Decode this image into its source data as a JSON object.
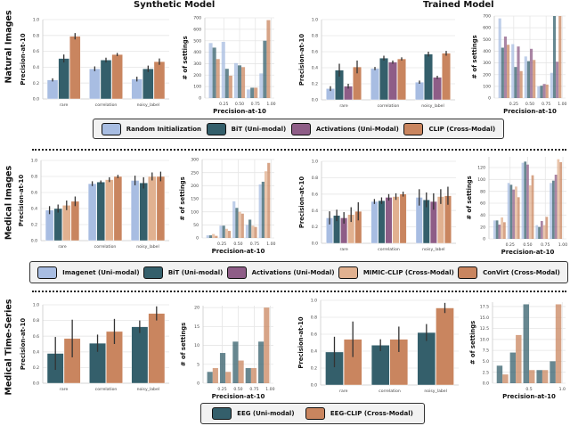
{
  "column_titles": [
    "Synthetic Model",
    "Trained Model"
  ],
  "row_labels": [
    "Natural Images",
    "Medical Images",
    "Medical Time-Series"
  ],
  "colors": {
    "Random Initialization": "#a8bde2",
    "BiT (Uni-modal)": "#345f6b",
    "Activations (Uni-Modal)": "#8e5d87",
    "CLIP (Cross-Modal)": "#c9855f",
    "Imagenet (Uni-modal)": "#a8bde2",
    "MIMIC-CLIP (Cross-Modal)": "#e1b190",
    "ConVirt (Cross-Modal)": "#c9855f",
    "EEG (Uni-modal)": "#345f6b",
    "EEG-CLIP (Cross-Modal)": "#c9855f"
  },
  "legends": [
    [
      "Random Initialization",
      "BiT (Uni-modal)",
      "Activations (Uni-Modal)",
      "CLIP (Cross-Modal)"
    ],
    [
      "Imagenet (Uni-modal)",
      "BiT (Uni-modal)",
      "Activations (Uni-Modal)",
      "MIMIC-CLIP (Cross-Modal)",
      "ConVirt (Cross-Modal)"
    ],
    [
      "EEG (Uni-modal)",
      "EEG-CLIP (Cross-Modal)"
    ]
  ],
  "chart_data": [
    {
      "type": "bar",
      "panel": "natural-synthetic",
      "ylabel": "Precision-at-10",
      "ylim": [
        0,
        1
      ],
      "yticks": [
        0,
        0.2,
        0.4,
        0.6,
        0.8,
        1.0
      ],
      "tick_decimals": 1,
      "grid": "horizontal",
      "categories": [
        "rare",
        "correlation",
        "noisy_label"
      ],
      "series": [
        {
          "name": "Random Initialization",
          "values": [
            0.24,
            0.38,
            0.25
          ],
          "err": [
            0.02,
            0.03,
            0.03
          ]
        },
        {
          "name": "BiT (Uni-modal)",
          "values": [
            0.51,
            0.49,
            0.38
          ],
          "err": [
            0.05,
            0.03,
            0.04
          ]
        },
        {
          "name": "CLIP (Cross-Modal)",
          "values": [
            0.79,
            0.56,
            0.47
          ],
          "err": [
            0.04,
            0.02,
            0.04
          ]
        }
      ]
    },
    {
      "type": "histogram",
      "panel": "natural-synthetic",
      "xlabel": "Precision-at-10",
      "ylabel": "# of settings",
      "ylim": [
        0,
        700
      ],
      "yticks": [
        0,
        100,
        200,
        300,
        400,
        500,
        600,
        700
      ],
      "tick_decimals": 0,
      "xticks": [
        0.25,
        0.5,
        0.75,
        1.0
      ],
      "xtick_decimals": 2,
      "bin_edges": [
        0,
        0.2,
        0.4,
        0.6,
        0.8,
        1.0
      ],
      "grid": "both",
      "series": [
        {
          "name": "Random Initialization",
          "values": [
            480,
            490,
            305,
            75,
            215
          ]
        },
        {
          "name": "BiT (Uni-modal)",
          "values": [
            440,
            255,
            285,
            90,
            500
          ]
        },
        {
          "name": "CLIP (Cross-Modal)",
          "values": [
            340,
            195,
            270,
            90,
            680
          ]
        }
      ]
    },
    {
      "type": "bar",
      "panel": "natural-trained",
      "ylabel": "Precision-at-10",
      "ylim": [
        0,
        1
      ],
      "yticks": [
        0,
        0.2,
        0.4,
        0.6,
        0.8,
        1.0
      ],
      "tick_decimals": 1,
      "grid": "horizontal",
      "categories": [
        "rare",
        "correlation",
        "noisy_label"
      ],
      "series": [
        {
          "name": "Random Initialization",
          "values": [
            0.14,
            0.39,
            0.22
          ],
          "err": [
            0.03,
            0.02,
            0.02
          ]
        },
        {
          "name": "BiT (Uni-modal)",
          "values": [
            0.37,
            0.52,
            0.57
          ],
          "err": [
            0.08,
            0.03,
            0.03
          ]
        },
        {
          "name": "Activations (Uni-Modal)",
          "values": [
            0.17,
            0.47,
            0.28
          ],
          "err": [
            0.03,
            0.02,
            0.02
          ]
        },
        {
          "name": "CLIP (Cross-Modal)",
          "values": [
            0.41,
            0.51,
            0.58
          ],
          "err": [
            0.08,
            0.02,
            0.03
          ]
        }
      ]
    },
    {
      "type": "histogram",
      "panel": "natural-trained",
      "xlabel": "Precision-at-10",
      "ylabel": "# of settings",
      "ylim": [
        0,
        700
      ],
      "yticks": [
        0,
        100,
        200,
        300,
        400,
        500,
        600,
        700
      ],
      "tick_decimals": 0,
      "xticks": [
        0.25,
        0.5,
        0.75,
        1.0
      ],
      "xtick_decimals": 2,
      "bin_edges": [
        0,
        0.2,
        0.4,
        0.6,
        0.8,
        1.0
      ],
      "grid": "both",
      "series": [
        {
          "name": "Random Initialization",
          "values": [
            680,
            460,
            355,
            100,
            215
          ]
        },
        {
          "name": "BiT (Uni-modal)",
          "values": [
            430,
            265,
            315,
            105,
            700
          ]
        },
        {
          "name": "Activations (Uni-Modal)",
          "values": [
            525,
            440,
            420,
            120,
            310
          ]
        },
        {
          "name": "CLIP (Cross-Modal)",
          "values": [
            455,
            230,
            325,
            115,
            700
          ]
        }
      ]
    },
    {
      "type": "bar",
      "panel": "medical-synthetic",
      "ylabel": "Precision-at-10",
      "ylim": [
        0,
        1
      ],
      "yticks": [
        0,
        0.2,
        0.4,
        0.6,
        0.8,
        1.0
      ],
      "tick_decimals": 1,
      "grid": "horizontal",
      "categories": [
        "rare",
        "correlation",
        "noisy_label"
      ],
      "series": [
        {
          "name": "Imagenet (Uni-modal)",
          "values": [
            0.38,
            0.71,
            0.75
          ],
          "err": [
            0.05,
            0.03,
            0.06
          ]
        },
        {
          "name": "BiT (Uni-modal)",
          "values": [
            0.4,
            0.73,
            0.72
          ],
          "err": [
            0.05,
            0.02,
            0.07
          ]
        },
        {
          "name": "MIMIC-CLIP (Cross-Modal)",
          "values": [
            0.44,
            0.76,
            0.8
          ],
          "err": [
            0.06,
            0.03,
            0.05
          ]
        },
        {
          "name": "ConVirt (Cross-Modal)",
          "values": [
            0.49,
            0.8,
            0.8
          ],
          "err": [
            0.06,
            0.02,
            0.06
          ]
        }
      ]
    },
    {
      "type": "histogram",
      "panel": "medical-synthetic",
      "xlabel": "Precision-at-10",
      "ylabel": "# of settings",
      "ylim": [
        0,
        300
      ],
      "yticks": [
        0,
        50,
        100,
        150,
        200,
        250,
        300
      ],
      "tick_decimals": 0,
      "xticks": [
        0.25,
        0.5,
        0.75,
        1.0
      ],
      "xtick_decimals": 2,
      "bin_edges": [
        0,
        0.2,
        0.4,
        0.6,
        0.8,
        1.0
      ],
      "grid": "both",
      "series": [
        {
          "name": "Imagenet (Uni-modal)",
          "values": [
            10,
            47,
            140,
            50,
            205
          ]
        },
        {
          "name": "BiT (Uni-modal)",
          "values": [
            10,
            47,
            115,
            70,
            215
          ]
        },
        {
          "name": "MIMIC-CLIP (Cross-Modal)",
          "values": [
            15,
            35,
            100,
            47,
            255
          ]
        },
        {
          "name": "ConVirt (Cross-Modal)",
          "values": [
            8,
            27,
            93,
            42,
            287
          ]
        }
      ]
    },
    {
      "type": "bar",
      "panel": "medical-trained",
      "ylabel": "Precision-at-10",
      "ylim": [
        0,
        1
      ],
      "yticks": [
        0,
        0.2,
        0.4,
        0.6,
        0.8,
        1.0
      ],
      "tick_decimals": 1,
      "grid": "horizontal",
      "categories": [
        "rare",
        "correlation",
        "noisy_label"
      ],
      "series": [
        {
          "name": "Imagenet (Uni-modal)",
          "values": [
            0.31,
            0.51,
            0.56
          ],
          "err": [
            0.08,
            0.03,
            0.1
          ]
        },
        {
          "name": "BiT (Uni-modal)",
          "values": [
            0.34,
            0.52,
            0.53
          ],
          "err": [
            0.07,
            0.04,
            0.09
          ]
        },
        {
          "name": "Activations (Uni-Modal)",
          "values": [
            0.31,
            0.56,
            0.51
          ],
          "err": [
            0.07,
            0.04,
            0.1
          ]
        },
        {
          "name": "MIMIC-CLIP (Cross-Modal)",
          "values": [
            0.35,
            0.57,
            0.57
          ],
          "err": [
            0.09,
            0.04,
            0.09
          ]
        },
        {
          "name": "ConVirt (Cross-Modal)",
          "values": [
            0.39,
            0.6,
            0.58
          ],
          "err": [
            0.11,
            0.03,
            0.11
          ]
        }
      ]
    },
    {
      "type": "histogram",
      "panel": "medical-trained",
      "xlabel": "Precision-at-10",
      "ylabel": "# of settings",
      "ylim": [
        0,
        138
      ],
      "yticks": [
        0,
        20,
        40,
        60,
        80,
        100,
        120
      ],
      "tick_decimals": 0,
      "xticks": [
        0.25,
        0.5,
        0.75,
        1.0
      ],
      "xtick_decimals": 2,
      "bin_edges": [
        0,
        0.2,
        0.4,
        0.6,
        0.8,
        1.0
      ],
      "grid": "both",
      "series": [
        {
          "name": "Imagenet (Uni-modal)",
          "values": [
            31,
            94,
            128,
            23,
            94
          ]
        },
        {
          "name": "BiT (Uni-modal)",
          "values": [
            31,
            91,
            130,
            20,
            98
          ]
        },
        {
          "name": "Activations (Uni-Modal)",
          "values": [
            24,
            83,
            125,
            30,
            108
          ]
        },
        {
          "name": "MIMIC-CLIP (Cross-Modal)",
          "values": [
            36,
            88,
            90,
            23,
            134
          ]
        },
        {
          "name": "ConVirt (Cross-Modal)",
          "values": [
            28,
            70,
            107,
            37,
            129
          ]
        }
      ]
    },
    {
      "type": "bar",
      "panel": "timeseries-synthetic",
      "ylabel": "Precision-at-10",
      "ylim": [
        0,
        1
      ],
      "yticks": [
        0,
        0.2,
        0.4,
        0.6,
        0.8,
        1.0
      ],
      "tick_decimals": 1,
      "grid": "horizontal",
      "categories": [
        "rare",
        "correlation",
        "noisy_label"
      ],
      "series": [
        {
          "name": "EEG (Uni-modal)",
          "values": [
            0.38,
            0.51,
            0.72
          ],
          "err": [
            0.21,
            0.11,
            0.08
          ]
        },
        {
          "name": "EEG-CLIP (Cross-Modal)",
          "values": [
            0.57,
            0.66,
            0.89
          ],
          "err": [
            0.24,
            0.16,
            0.09
          ]
        }
      ]
    },
    {
      "type": "histogram",
      "panel": "timeseries-synthetic",
      "xlabel": "Precision-at-10",
      "ylabel": "# of settings",
      "ylim": [
        0,
        20.5
      ],
      "yticks": [
        0,
        5,
        10,
        15,
        20
      ],
      "tick_decimals": 0,
      "xticks": [
        0.25,
        0.5,
        0.75,
        1.0
      ],
      "xtick_decimals": 2,
      "bin_edges": [
        0,
        0.2,
        0.4,
        0.6,
        0.8,
        1.0
      ],
      "grid": "both",
      "series": [
        {
          "name": "EEG (Uni-modal)",
          "values": [
            3,
            8,
            11,
            4,
            11
          ]
        },
        {
          "name": "EEG-CLIP (Cross-Modal)",
          "values": [
            4,
            3,
            6,
            4,
            20
          ]
        }
      ]
    },
    {
      "type": "bar",
      "panel": "timeseries-trained",
      "ylabel": "Precision-at-10",
      "ylim": [
        0,
        1
      ],
      "yticks": [
        0,
        0.2,
        0.4,
        0.6,
        0.8,
        1.0
      ],
      "tick_decimals": 1,
      "grid": "horizontal",
      "categories": [
        "rare",
        "correlation",
        "noisy_label"
      ],
      "series": [
        {
          "name": "EEG (Uni-modal)",
          "values": [
            0.39,
            0.47,
            0.62
          ],
          "err": [
            0.18,
            0.07,
            0.1
          ]
        },
        {
          "name": "EEG-CLIP (Cross-Modal)",
          "values": [
            0.54,
            0.54,
            0.91
          ],
          "err": [
            0.21,
            0.15,
            0.06
          ]
        }
      ]
    },
    {
      "type": "histogram",
      "panel": "timeseries-trained",
      "xlabel": "Precision-at-10",
      "ylabel": "# of settings",
      "ylim": [
        0,
        18.5
      ],
      "yticks": [
        0,
        2.5,
        5,
        7.5,
        10,
        12.5,
        15,
        17.5
      ],
      "tick_decimals": 1,
      "xticks": [
        0.5,
        1.0
      ],
      "xtick_decimals": 1,
      "bin_edges": [
        0,
        0.2,
        0.4,
        0.6,
        0.8,
        1.0
      ],
      "grid": "both",
      "series": [
        {
          "name": "EEG (Uni-modal)",
          "values": [
            4,
            7,
            18,
            3,
            5
          ]
        },
        {
          "name": "EEG-CLIP (Cross-Modal)",
          "values": [
            2,
            11,
            3,
            3,
            18
          ]
        }
      ]
    }
  ]
}
